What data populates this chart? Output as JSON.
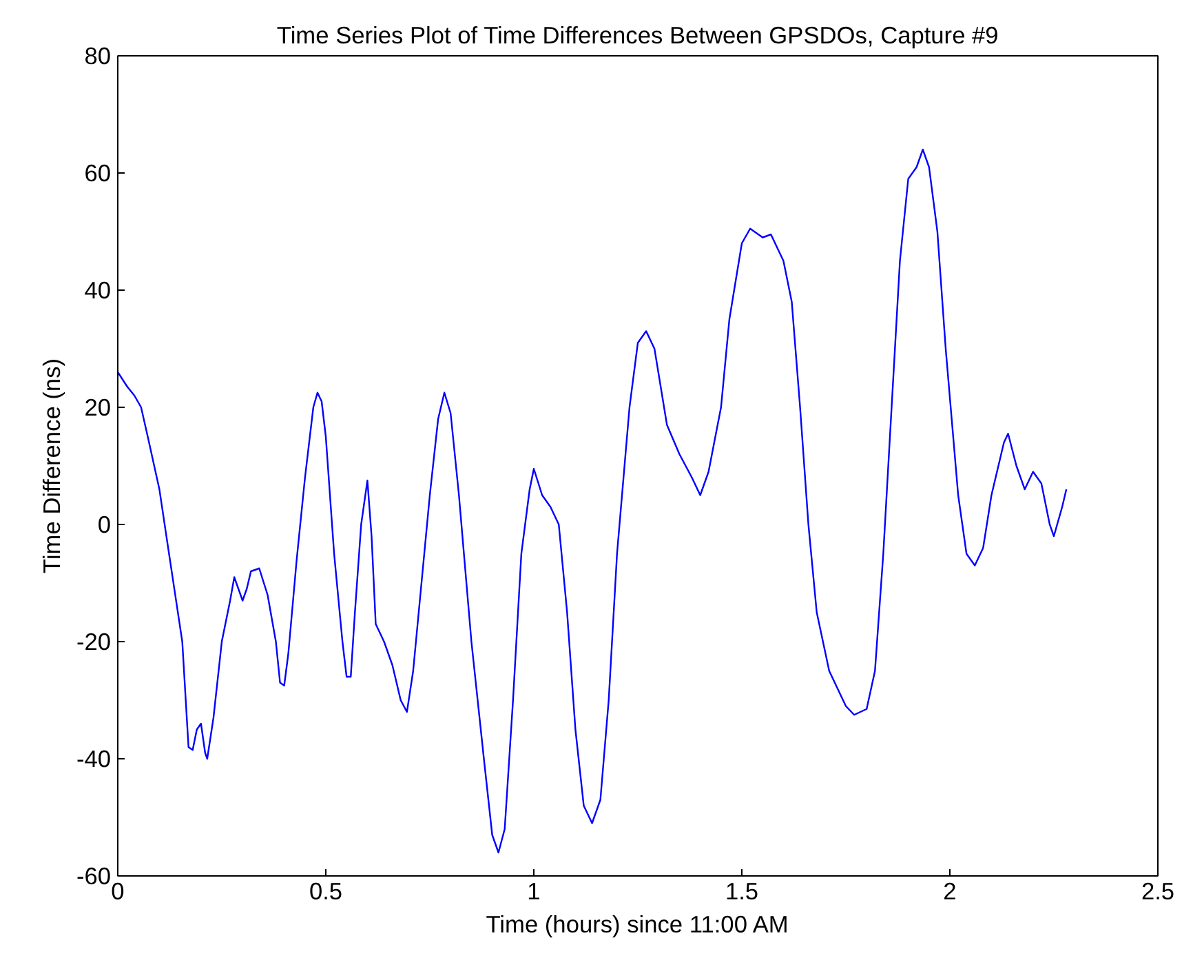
{
  "chart_data": {
    "type": "line",
    "title": "Time Series Plot of Time Differences Between GPSDOs, Capture #9",
    "xlabel": "Time (hours) since 11:00 AM",
    "ylabel": "Time Difference (ns)",
    "xlim": [
      0,
      2.5
    ],
    "ylim": [
      -60,
      80
    ],
    "xticks": [
      0,
      0.5,
      1,
      1.5,
      2,
      2.5
    ],
    "yticks": [
      -60,
      -40,
      -20,
      0,
      20,
      40,
      60,
      80
    ],
    "grid": false,
    "marker": "none",
    "line_style": "solid",
    "series": [
      {
        "color": "#0000ff",
        "x": [
          0,
          0.023,
          0.04,
          0.056,
          0.072,
          0.1,
          0.12,
          0.155,
          0.17,
          0.18,
          0.19,
          0.2,
          0.21,
          0.215,
          0.23,
          0.25,
          0.27,
          0.28,
          0.29,
          0.3,
          0.31,
          0.32,
          0.34,
          0.36,
          0.38,
          0.39,
          0.4,
          0.41,
          0.43,
          0.45,
          0.47,
          0.48,
          0.49,
          0.5,
          0.52,
          0.54,
          0.55,
          0.56,
          0.57,
          0.585,
          0.6,
          0.61,
          0.62,
          0.64,
          0.66,
          0.68,
          0.695,
          0.71,
          0.73,
          0.75,
          0.77,
          0.785,
          0.8,
          0.82,
          0.85,
          0.88,
          0.9,
          0.915,
          0.93,
          0.95,
          0.97,
          0.99,
          1.0,
          1.02,
          1.04,
          1.06,
          1.08,
          1.1,
          1.12,
          1.14,
          1.16,
          1.18,
          1.2,
          1.23,
          1.25,
          1.27,
          1.29,
          1.32,
          1.35,
          1.38,
          1.4,
          1.42,
          1.45,
          1.47,
          1.5,
          1.52,
          1.55,
          1.57,
          1.6,
          1.62,
          1.64,
          1.66,
          1.68,
          1.71,
          1.75,
          1.77,
          1.8,
          1.82,
          1.84,
          1.86,
          1.88,
          1.9,
          1.92,
          1.935,
          1.95,
          1.97,
          1.99,
          2.02,
          2.04,
          2.06,
          2.08,
          2.1,
          2.13,
          2.14,
          2.16,
          2.18,
          2.2,
          2.22,
          2.24,
          2.25,
          2.27,
          2.28
        ],
        "values": [
          26,
          23.5,
          22,
          20,
          15,
          6,
          -3.5,
          -20,
          -38,
          -38.5,
          -35,
          -34,
          -39,
          -40,
          -33,
          -20,
          -13,
          -9,
          -11,
          -13,
          -11,
          -8,
          -7.5,
          -12,
          -20,
          -27,
          -27.5,
          -22,
          -6,
          8,
          20,
          22.5,
          21,
          15,
          -5,
          -20,
          -26,
          -26,
          -15,
          0,
          7.5,
          -2,
          -17,
          -20,
          -24,
          -30,
          -32,
          -25,
          -10,
          5,
          18,
          22.5,
          19,
          5,
          -20,
          -40,
          -53,
          -56,
          -52,
          -30,
          -5,
          6,
          9.5,
          5,
          3,
          0,
          -15,
          -35,
          -48,
          -51,
          -47,
          -30,
          -5,
          20,
          31,
          33,
          30,
          17,
          12,
          8,
          5,
          9,
          20,
          35,
          48,
          50.5,
          49,
          49.5,
          45,
          38,
          20,
          0,
          -15,
          -25,
          -31,
          -32.5,
          -31.5,
          -25,
          -5,
          20,
          45,
          59,
          61,
          64,
          61,
          50,
          30,
          5,
          -5,
          -7,
          -4,
          5,
          14,
          15.5,
          10,
          6,
          9,
          7,
          0,
          -2,
          3,
          6
        ]
      }
    ]
  }
}
